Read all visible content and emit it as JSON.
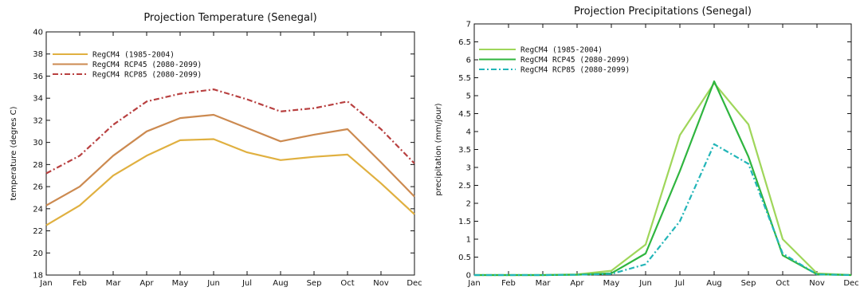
{
  "chart_data": [
    {
      "type": "line",
      "title": "Projection Temperature (Senegal)",
      "xlabel": "",
      "ylabel": "temperature (degres C)",
      "categories": [
        "Jan",
        "Feb",
        "Mar",
        "Apr",
        "May",
        "Jun",
        "Jul",
        "Aug",
        "Sep",
        "Oct",
        "Nov",
        "Dec"
      ],
      "ylim": [
        18,
        40
      ],
      "yticks": [
        "18",
        "20",
        "22",
        "24",
        "26",
        "28",
        "30",
        "32",
        "34",
        "36",
        "38",
        "40"
      ],
      "grid": false,
      "legend_position": "top-left",
      "series": [
        {
          "name": "RegCM4 (1985-2004)",
          "color": "#e0b040",
          "style": "solid",
          "values": [
            22.5,
            24.3,
            27.0,
            28.8,
            30.2,
            30.3,
            29.1,
            28.4,
            28.7,
            28.9,
            26.3,
            23.5
          ]
        },
        {
          "name": "RegCM4 RCP45 (2080-2099)",
          "color": "#cc8a50",
          "style": "solid",
          "values": [
            24.3,
            26.0,
            28.8,
            31.0,
            32.2,
            32.5,
            31.3,
            30.1,
            30.7,
            31.2,
            28.2,
            25.1
          ]
        },
        {
          "name": "RegCM4 RCP85 (2080-2099)",
          "color": "#b84040",
          "style": "dashdot",
          "values": [
            27.2,
            28.8,
            31.6,
            33.7,
            34.4,
            34.8,
            33.9,
            32.8,
            33.1,
            33.7,
            31.2,
            28.1
          ]
        }
      ]
    },
    {
      "type": "line",
      "title": "Projection Precipitations (Senegal)",
      "xlabel": "",
      "ylabel": "precipitation (mm/jour)",
      "categories": [
        "Jan",
        "Feb",
        "Mar",
        "Apr",
        "May",
        "Jun",
        "Jul",
        "Aug",
        "Sep",
        "Oct",
        "Nov",
        "Dec"
      ],
      "ylim": [
        0,
        7
      ],
      "yticks": [
        "0",
        "0.5",
        "1",
        "1.5",
        "2",
        "2.5",
        "3",
        "3.5",
        "4",
        "4.5",
        "5",
        "5.5",
        "6",
        "6.5",
        "7"
      ],
      "grid": false,
      "legend_position": "top-left",
      "series": [
        {
          "name": "RegCM4 (1985-2004)",
          "color": "#9fd65a",
          "style": "solid",
          "values": [
            0,
            0,
            0,
            0.02,
            0.12,
            0.85,
            3.9,
            5.35,
            4.2,
            1.0,
            0.05,
            0
          ]
        },
        {
          "name": "RegCM4 RCP45 (2080-2099)",
          "color": "#2fb53f",
          "style": "solid",
          "values": [
            0,
            0,
            0,
            0.01,
            0.05,
            0.6,
            2.9,
            5.4,
            3.3,
            0.55,
            0.02,
            0
          ]
        },
        {
          "name": "RegCM4 RCP85 (2080-2099)",
          "color": "#22b5b8",
          "style": "dashdot",
          "values": [
            0,
            0,
            0,
            0.01,
            0.03,
            0.3,
            1.5,
            3.65,
            3.1,
            0.6,
            0.02,
            0
          ]
        }
      ]
    }
  ]
}
